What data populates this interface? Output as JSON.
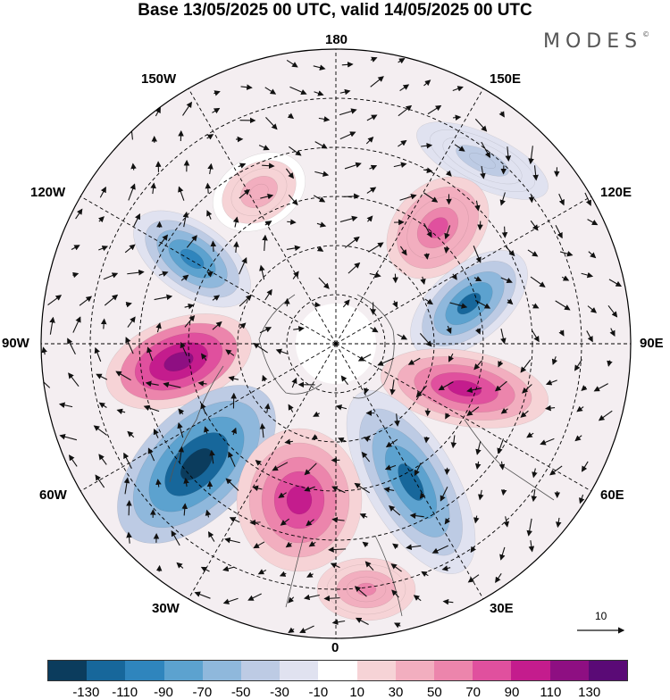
{
  "title": "Base 13/05/2025 00 UTC, valid 14/05/2025 00 UTC",
  "brand": "MODES",
  "brand_mark": "©",
  "longitude_labels": {
    "top": "180",
    "top_left": "150W",
    "top_right": "150E",
    "upper_left": "120W",
    "upper_right": "120E",
    "left": "90W",
    "right": "90E",
    "lower_left": "60W",
    "lower_right": "60E",
    "bottom_left": "30W",
    "bottom_right": "30E",
    "bottom": "0"
  },
  "vector_scale_label": "10",
  "colorbar": {
    "colors": [
      "#0b3c5d",
      "#17679b",
      "#2f85bd",
      "#5ca2cf",
      "#8fb8dc",
      "#bdcbe4",
      "#e0e2f0",
      "#ffffff",
      "#f6d3d6",
      "#f2aebf",
      "#ec85ac",
      "#e0509e",
      "#c41c8d",
      "#8e0f82",
      "#5a0a76"
    ],
    "labels": [
      "-130",
      "-110",
      "-90",
      "-70",
      "-50",
      "-30",
      "-10",
      "10",
      "30",
      "50",
      "70",
      "90",
      "110",
      "130"
    ]
  },
  "anomaly_centers": [
    {
      "name": "center-150W-positive",
      "sign": "positive",
      "value": 40
    },
    {
      "name": "center-150E-negative",
      "sign": "negative",
      "value": -40
    },
    {
      "name": "center-130W-negative",
      "sign": "negative",
      "value": -100
    },
    {
      "name": "center-135E-positive",
      "sign": "positive",
      "value": 75
    },
    {
      "name": "center-100E-negative",
      "sign": "negative",
      "value": -110
    },
    {
      "name": "center-85W-positive",
      "sign": "positive",
      "value": 120
    },
    {
      "name": "center-70E-positive",
      "sign": "positive",
      "value": 100
    },
    {
      "name": "center-55W-negative",
      "sign": "negative",
      "value": -140
    },
    {
      "name": "center-30E-negative",
      "sign": "negative",
      "value": -110
    },
    {
      "name": "center-15W-positive",
      "sign": "positive",
      "value": 110
    },
    {
      "name": "center-10E-positive",
      "sign": "positive",
      "value": 60
    }
  ]
}
